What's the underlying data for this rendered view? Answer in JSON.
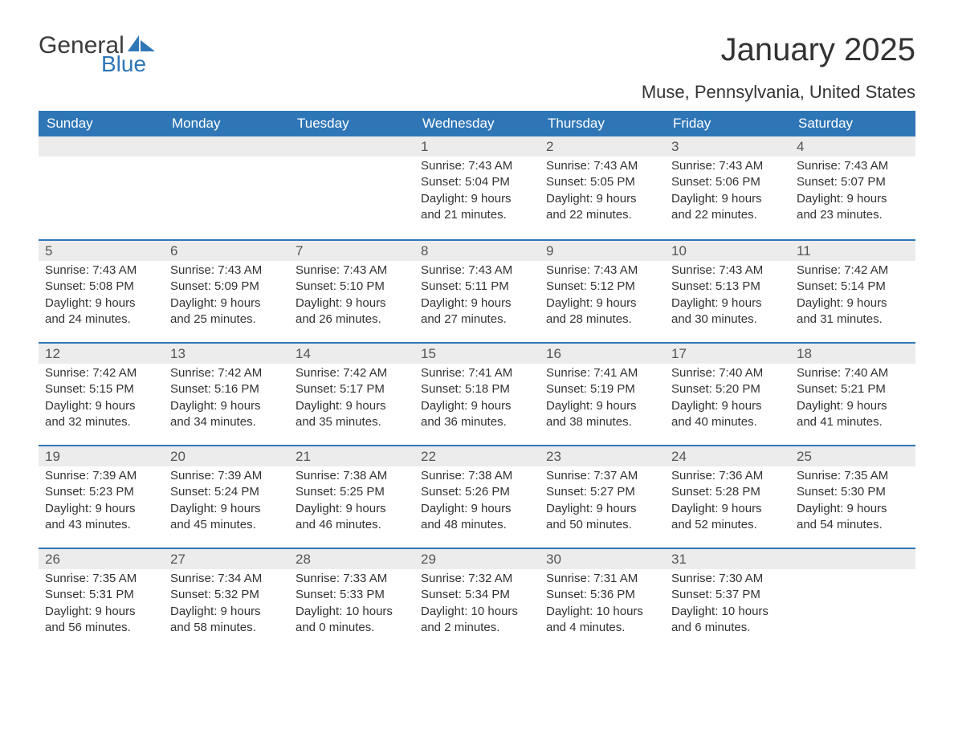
{
  "brand": {
    "general": "General",
    "blue": "Blue",
    "sail_color": "#2f76b7",
    "text_color": "#3b3b3b"
  },
  "title": "January 2025",
  "subtitle": "Muse, Pennsylvania, United States",
  "colors": {
    "header_bg": "#2f76b7",
    "header_text": "#ffffff",
    "daynum_bg": "#ececec",
    "row_divider": "#2f76b7",
    "body_text": "#333333",
    "page_bg": "#ffffff"
  },
  "day_headers": [
    "Sunday",
    "Monday",
    "Tuesday",
    "Wednesday",
    "Thursday",
    "Friday",
    "Saturday"
  ],
  "weeks": [
    [
      {
        "day": "",
        "sunrise": "",
        "sunset": "",
        "daylight1": "",
        "daylight2": ""
      },
      {
        "day": "",
        "sunrise": "",
        "sunset": "",
        "daylight1": "",
        "daylight2": ""
      },
      {
        "day": "",
        "sunrise": "",
        "sunset": "",
        "daylight1": "",
        "daylight2": ""
      },
      {
        "day": "1",
        "sunrise": "Sunrise: 7:43 AM",
        "sunset": "Sunset: 5:04 PM",
        "daylight1": "Daylight: 9 hours",
        "daylight2": "and 21 minutes."
      },
      {
        "day": "2",
        "sunrise": "Sunrise: 7:43 AM",
        "sunset": "Sunset: 5:05 PM",
        "daylight1": "Daylight: 9 hours",
        "daylight2": "and 22 minutes."
      },
      {
        "day": "3",
        "sunrise": "Sunrise: 7:43 AM",
        "sunset": "Sunset: 5:06 PM",
        "daylight1": "Daylight: 9 hours",
        "daylight2": "and 22 minutes."
      },
      {
        "day": "4",
        "sunrise": "Sunrise: 7:43 AM",
        "sunset": "Sunset: 5:07 PM",
        "daylight1": "Daylight: 9 hours",
        "daylight2": "and 23 minutes."
      }
    ],
    [
      {
        "day": "5",
        "sunrise": "Sunrise: 7:43 AM",
        "sunset": "Sunset: 5:08 PM",
        "daylight1": "Daylight: 9 hours",
        "daylight2": "and 24 minutes."
      },
      {
        "day": "6",
        "sunrise": "Sunrise: 7:43 AM",
        "sunset": "Sunset: 5:09 PM",
        "daylight1": "Daylight: 9 hours",
        "daylight2": "and 25 minutes."
      },
      {
        "day": "7",
        "sunrise": "Sunrise: 7:43 AM",
        "sunset": "Sunset: 5:10 PM",
        "daylight1": "Daylight: 9 hours",
        "daylight2": "and 26 minutes."
      },
      {
        "day": "8",
        "sunrise": "Sunrise: 7:43 AM",
        "sunset": "Sunset: 5:11 PM",
        "daylight1": "Daylight: 9 hours",
        "daylight2": "and 27 minutes."
      },
      {
        "day": "9",
        "sunrise": "Sunrise: 7:43 AM",
        "sunset": "Sunset: 5:12 PM",
        "daylight1": "Daylight: 9 hours",
        "daylight2": "and 28 minutes."
      },
      {
        "day": "10",
        "sunrise": "Sunrise: 7:43 AM",
        "sunset": "Sunset: 5:13 PM",
        "daylight1": "Daylight: 9 hours",
        "daylight2": "and 30 minutes."
      },
      {
        "day": "11",
        "sunrise": "Sunrise: 7:42 AM",
        "sunset": "Sunset: 5:14 PM",
        "daylight1": "Daylight: 9 hours",
        "daylight2": "and 31 minutes."
      }
    ],
    [
      {
        "day": "12",
        "sunrise": "Sunrise: 7:42 AM",
        "sunset": "Sunset: 5:15 PM",
        "daylight1": "Daylight: 9 hours",
        "daylight2": "and 32 minutes."
      },
      {
        "day": "13",
        "sunrise": "Sunrise: 7:42 AM",
        "sunset": "Sunset: 5:16 PM",
        "daylight1": "Daylight: 9 hours",
        "daylight2": "and 34 minutes."
      },
      {
        "day": "14",
        "sunrise": "Sunrise: 7:42 AM",
        "sunset": "Sunset: 5:17 PM",
        "daylight1": "Daylight: 9 hours",
        "daylight2": "and 35 minutes."
      },
      {
        "day": "15",
        "sunrise": "Sunrise: 7:41 AM",
        "sunset": "Sunset: 5:18 PM",
        "daylight1": "Daylight: 9 hours",
        "daylight2": "and 36 minutes."
      },
      {
        "day": "16",
        "sunrise": "Sunrise: 7:41 AM",
        "sunset": "Sunset: 5:19 PM",
        "daylight1": "Daylight: 9 hours",
        "daylight2": "and 38 minutes."
      },
      {
        "day": "17",
        "sunrise": "Sunrise: 7:40 AM",
        "sunset": "Sunset: 5:20 PM",
        "daylight1": "Daylight: 9 hours",
        "daylight2": "and 40 minutes."
      },
      {
        "day": "18",
        "sunrise": "Sunrise: 7:40 AM",
        "sunset": "Sunset: 5:21 PM",
        "daylight1": "Daylight: 9 hours",
        "daylight2": "and 41 minutes."
      }
    ],
    [
      {
        "day": "19",
        "sunrise": "Sunrise: 7:39 AM",
        "sunset": "Sunset: 5:23 PM",
        "daylight1": "Daylight: 9 hours",
        "daylight2": "and 43 minutes."
      },
      {
        "day": "20",
        "sunrise": "Sunrise: 7:39 AM",
        "sunset": "Sunset: 5:24 PM",
        "daylight1": "Daylight: 9 hours",
        "daylight2": "and 45 minutes."
      },
      {
        "day": "21",
        "sunrise": "Sunrise: 7:38 AM",
        "sunset": "Sunset: 5:25 PM",
        "daylight1": "Daylight: 9 hours",
        "daylight2": "and 46 minutes."
      },
      {
        "day": "22",
        "sunrise": "Sunrise: 7:38 AM",
        "sunset": "Sunset: 5:26 PM",
        "daylight1": "Daylight: 9 hours",
        "daylight2": "and 48 minutes."
      },
      {
        "day": "23",
        "sunrise": "Sunrise: 7:37 AM",
        "sunset": "Sunset: 5:27 PM",
        "daylight1": "Daylight: 9 hours",
        "daylight2": "and 50 minutes."
      },
      {
        "day": "24",
        "sunrise": "Sunrise: 7:36 AM",
        "sunset": "Sunset: 5:28 PM",
        "daylight1": "Daylight: 9 hours",
        "daylight2": "and 52 minutes."
      },
      {
        "day": "25",
        "sunrise": "Sunrise: 7:35 AM",
        "sunset": "Sunset: 5:30 PM",
        "daylight1": "Daylight: 9 hours",
        "daylight2": "and 54 minutes."
      }
    ],
    [
      {
        "day": "26",
        "sunrise": "Sunrise: 7:35 AM",
        "sunset": "Sunset: 5:31 PM",
        "daylight1": "Daylight: 9 hours",
        "daylight2": "and 56 minutes."
      },
      {
        "day": "27",
        "sunrise": "Sunrise: 7:34 AM",
        "sunset": "Sunset: 5:32 PM",
        "daylight1": "Daylight: 9 hours",
        "daylight2": "and 58 minutes."
      },
      {
        "day": "28",
        "sunrise": "Sunrise: 7:33 AM",
        "sunset": "Sunset: 5:33 PM",
        "daylight1": "Daylight: 10 hours",
        "daylight2": "and 0 minutes."
      },
      {
        "day": "29",
        "sunrise": "Sunrise: 7:32 AM",
        "sunset": "Sunset: 5:34 PM",
        "daylight1": "Daylight: 10 hours",
        "daylight2": "and 2 minutes."
      },
      {
        "day": "30",
        "sunrise": "Sunrise: 7:31 AM",
        "sunset": "Sunset: 5:36 PM",
        "daylight1": "Daylight: 10 hours",
        "daylight2": "and 4 minutes."
      },
      {
        "day": "31",
        "sunrise": "Sunrise: 7:30 AM",
        "sunset": "Sunset: 5:37 PM",
        "daylight1": "Daylight: 10 hours",
        "daylight2": "and 6 minutes."
      },
      {
        "day": "",
        "sunrise": "",
        "sunset": "",
        "daylight1": "",
        "daylight2": ""
      }
    ]
  ]
}
